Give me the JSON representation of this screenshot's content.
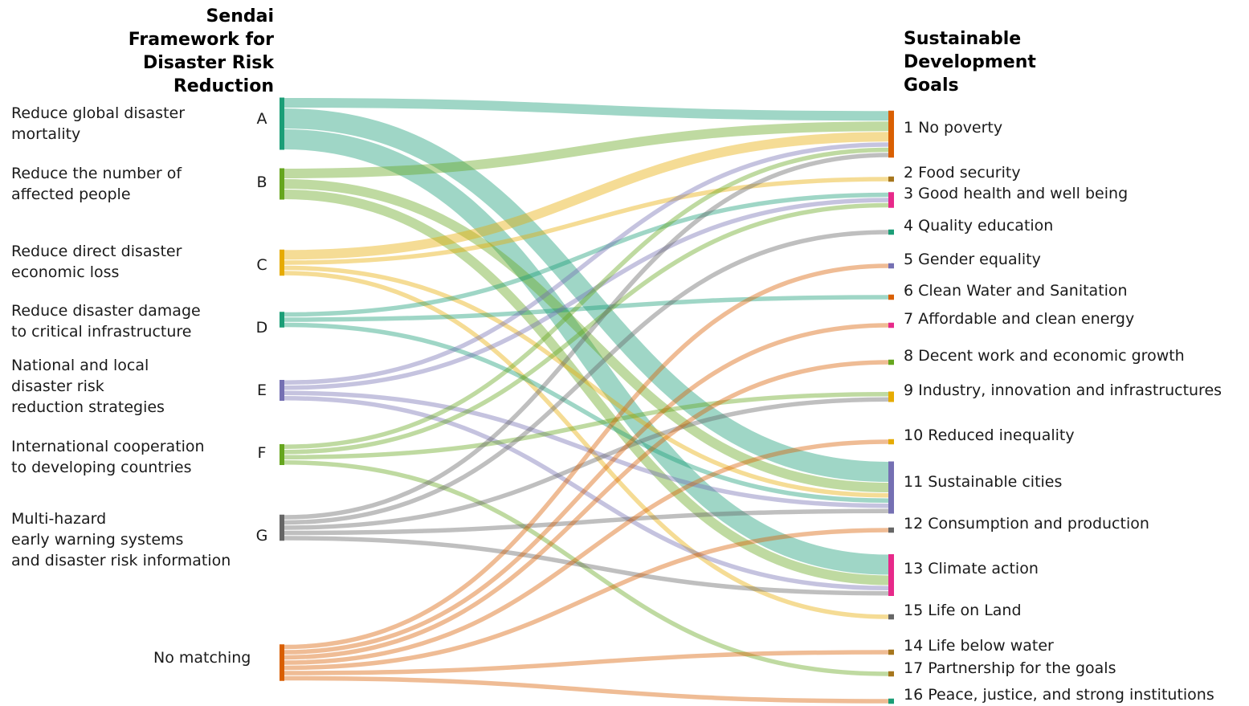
{
  "headers": {
    "left": [
      "Sendai",
      "Framework for",
      "Disaster Risk",
      "Reduction"
    ],
    "right": [
      "Sustainable",
      "Development",
      "Goals"
    ]
  },
  "left_nodes": [
    {
      "id": "A",
      "label": "A",
      "description": "Reduce global disaster\nmortality",
      "color": "#1b9e77"
    },
    {
      "id": "B",
      "label": "B",
      "description": "Reduce the number of\naffected people",
      "color": "#66a61e"
    },
    {
      "id": "C",
      "label": "C",
      "description": "Reduce direct disaster\neconomic loss",
      "color": "#e6ab02"
    },
    {
      "id": "D",
      "label": "D",
      "description": "Reduce disaster damage\nto critical infrastructure",
      "color": "#1b9e77"
    },
    {
      "id": "E",
      "label": "E",
      "description": "National and local\ndisaster risk\nreduction strategies",
      "color": "#7570b3"
    },
    {
      "id": "F",
      "label": "F",
      "description": "International cooperation\nto developing countries",
      "color": "#66a61e"
    },
    {
      "id": "G",
      "label": "G",
      "description": "Multi-hazard\nearly warning systems\nand disaster risk information",
      "color": "#666666"
    },
    {
      "id": "NM",
      "label": "No matching",
      "description": "",
      "color": "#d95f02"
    }
  ],
  "right_nodes": [
    {
      "id": "1",
      "label": "1 No poverty",
      "color": "#d95f02"
    },
    {
      "id": "2",
      "label": "2 Food security",
      "color": "#a6761d"
    },
    {
      "id": "3",
      "label": "3 Good health and well being",
      "color": "#e7298a"
    },
    {
      "id": "4",
      "label": "4 Quality education",
      "color": "#1b9e77"
    },
    {
      "id": "5",
      "label": "5 Gender equality",
      "color": "#7570b3"
    },
    {
      "id": "6",
      "label": "6 Clean Water and Sanitation",
      "color": "#d95f02"
    },
    {
      "id": "7",
      "label": "7 Affordable and clean energy",
      "color": "#e7298a"
    },
    {
      "id": "8",
      "label": "8 Decent work and economic growth",
      "color": "#66a61e"
    },
    {
      "id": "9",
      "label": "9 Industry, innovation and infrastructures",
      "color": "#e6ab02"
    },
    {
      "id": "10",
      "label": "10 Reduced inequality",
      "color": "#e6ab02"
    },
    {
      "id": "11",
      "label": "11 Sustainable cities",
      "color": "#7570b3"
    },
    {
      "id": "12",
      "label": "12 Consumption and production",
      "color": "#666666"
    },
    {
      "id": "13",
      "label": "13 Climate action",
      "color": "#e7298a"
    },
    {
      "id": "15",
      "label": "15 Life on Land",
      "color": "#666666"
    },
    {
      "id": "14",
      "label": "14 Life below water",
      "color": "#a6761d"
    },
    {
      "id": "17",
      "label": "17 Partnership for the goals",
      "color": "#a6761d"
    },
    {
      "id": "16",
      "label": "16 Peace, justice, and strong institutions",
      "color": "#1b9e77"
    }
  ],
  "flows": [
    {
      "source": "A",
      "target": "1",
      "value": 1
    },
    {
      "source": "A",
      "target": "11",
      "value": 2
    },
    {
      "source": "A",
      "target": "13",
      "value": 2
    },
    {
      "source": "B",
      "target": "1",
      "value": 1
    },
    {
      "source": "B",
      "target": "11",
      "value": 1
    },
    {
      "source": "B",
      "target": "13",
      "value": 1
    },
    {
      "source": "C",
      "target": "1",
      "value": 1
    },
    {
      "source": "C",
      "target": "2",
      "value": 0.5
    },
    {
      "source": "C",
      "target": "11",
      "value": 0.5
    },
    {
      "source": "C",
      "target": "15",
      "value": 0.5
    },
    {
      "source": "D",
      "target": "3",
      "value": 0.5
    },
    {
      "source": "D",
      "target": "6",
      "value": 0.5
    },
    {
      "source": "D",
      "target": "11",
      "value": 0.5
    },
    {
      "source": "E",
      "target": "1",
      "value": 0.5
    },
    {
      "source": "E",
      "target": "3",
      "value": 0.5
    },
    {
      "source": "E",
      "target": "11",
      "value": 0.5
    },
    {
      "source": "E",
      "target": "13",
      "value": 0.5
    },
    {
      "source": "F",
      "target": "1",
      "value": 0.5
    },
    {
      "source": "F",
      "target": "3",
      "value": 0.5
    },
    {
      "source": "F",
      "target": "9",
      "value": 0.5
    },
    {
      "source": "F",
      "target": "17",
      "value": 0.5
    },
    {
      "source": "G",
      "target": "1",
      "value": 0.5
    },
    {
      "source": "G",
      "target": "4",
      "value": 0.5
    },
    {
      "source": "G",
      "target": "9",
      "value": 0.5
    },
    {
      "source": "G",
      "target": "11",
      "value": 0.5
    },
    {
      "source": "G",
      "target": "13",
      "value": 0.5
    },
    {
      "source": "NM",
      "target": "5",
      "value": 0.5
    },
    {
      "source": "NM",
      "target": "7",
      "value": 0.5
    },
    {
      "source": "NM",
      "target": "8",
      "value": 0.5
    },
    {
      "source": "NM",
      "target": "10",
      "value": 0.5
    },
    {
      "source": "NM",
      "target": "12",
      "value": 0.5
    },
    {
      "source": "NM",
      "target": "14",
      "value": 0.5
    },
    {
      "source": "NM",
      "target": "16",
      "value": 0.5
    }
  ]
}
